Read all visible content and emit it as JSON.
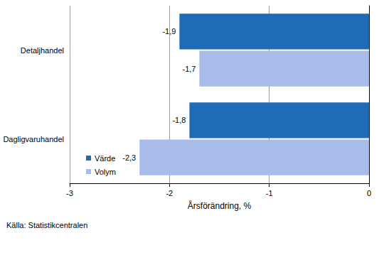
{
  "chart_data": {
    "type": "bar",
    "orientation": "horizontal",
    "categories": [
      "Detaljhandel",
      "Dagligvaruhandel"
    ],
    "series": [
      {
        "name": "Värde",
        "color": "#1f6bb5",
        "values": [
          -1.9,
          -1.8
        ],
        "value_labels": [
          "-1,9",
          "-1,8"
        ]
      },
      {
        "name": "Volym",
        "color": "#a8bcea",
        "values": [
          -1.7,
          -2.3
        ],
        "value_labels": [
          "-1,7",
          "-2,3"
        ]
      }
    ],
    "xlabel": "Årsförändring, %",
    "annotations": [
      "Källa: Statistikcentralen"
    ],
    "xlim": [
      -3,
      0
    ],
    "xticks": [
      -3,
      -2,
      -1,
      0
    ],
    "grid": true,
    "legend": "lower left",
    "data_labels": true
  }
}
